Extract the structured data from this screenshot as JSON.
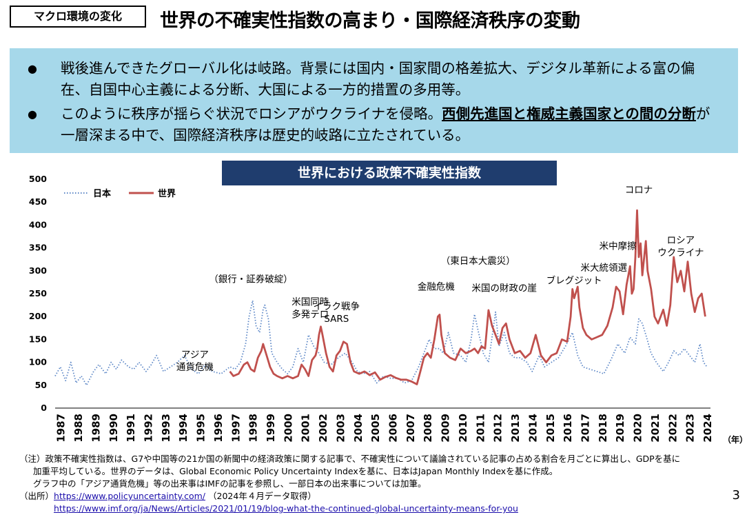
{
  "header": {
    "tag": "マクロ環境の変化",
    "title": "世界の不確実性指数の高まり・国際経済秩序の変動"
  },
  "summary": {
    "bullet_symbol": "●",
    "bullet1": "戦後進んできたグローバル化は岐路。背景には国内・国家間の格差拡大、デジタル革新による富の偏在、自国中心主義による分断、大国による一方的措置の多用等。",
    "bullet2_pre": "このように秩序が揺らぐ状況でロシアがウクライナを侵略。",
    "bullet2_bold": "西側先進国と権威主義国家との間の分断",
    "bullet2_post": "が一層深まる中で、国際経済秩序は歴史的岐路に立たされている。"
  },
  "chart_title": "世界における政策不確実性指数",
  "chart_data": {
    "type": "line",
    "x_unit_label": "（年）",
    "ylim": [
      0,
      500
    ],
    "yticks": [
      0,
      50,
      100,
      150,
      200,
      250,
      300,
      350,
      400,
      450,
      500
    ],
    "years": [
      "1987",
      "1988",
      "1989",
      "1990",
      "1991",
      "1992",
      "1993",
      "1994",
      "1995",
      "1996",
      "1997",
      "1998",
      "1999",
      "2000",
      "2001",
      "2002",
      "2003",
      "2004",
      "2005",
      "2006",
      "2007",
      "2008",
      "2009",
      "2010",
      "2011",
      "2012",
      "2013",
      "2014",
      "2015",
      "2016",
      "2017",
      "2018",
      "2019",
      "2020",
      "2021",
      "2022",
      "2023",
      "2024"
    ],
    "legend_position": "top-left",
    "series": [
      {
        "name": "日本",
        "style": "dotted",
        "color": "#5b86c6",
        "points": [
          [
            1987.0,
            70
          ],
          [
            1987.3,
            90
          ],
          [
            1987.6,
            60
          ],
          [
            1987.9,
            100
          ],
          [
            1988.2,
            55
          ],
          [
            1988.5,
            70
          ],
          [
            1988.8,
            50
          ],
          [
            1989.2,
            80
          ],
          [
            1989.5,
            95
          ],
          [
            1989.9,
            75
          ],
          [
            1990.2,
            100
          ],
          [
            1990.5,
            85
          ],
          [
            1990.8,
            105
          ],
          [
            1991.2,
            90
          ],
          [
            1991.5,
            85
          ],
          [
            1991.8,
            100
          ],
          [
            1992.2,
            80
          ],
          [
            1992.5,
            95
          ],
          [
            1992.8,
            115
          ],
          [
            1993.2,
            80
          ],
          [
            1993.6,
            90
          ],
          [
            1994.0,
            100
          ],
          [
            1994.4,
            115
          ],
          [
            1994.8,
            85
          ],
          [
            1995.2,
            75
          ],
          [
            1995.6,
            95
          ],
          [
            1996.0,
            80
          ],
          [
            1996.5,
            75
          ],
          [
            1997.0,
            90
          ],
          [
            1997.3,
            85
          ],
          [
            1997.6,
            100
          ],
          [
            1997.9,
            140
          ],
          [
            1998.1,
            200
          ],
          [
            1998.3,
            235
          ],
          [
            1998.5,
            180
          ],
          [
            1998.7,
            165
          ],
          [
            1998.9,
            215
          ],
          [
            1999.0,
            225
          ],
          [
            1999.2,
            195
          ],
          [
            1999.4,
            120
          ],
          [
            1999.7,
            100
          ],
          [
            2000.0,
            85
          ],
          [
            2000.3,
            75
          ],
          [
            2000.6,
            90
          ],
          [
            2000.9,
            130
          ],
          [
            2001.2,
            100
          ],
          [
            2001.5,
            160
          ],
          [
            2001.8,
            135
          ],
          [
            2002.1,
            120
          ],
          [
            2002.4,
            100
          ],
          [
            2002.8,
            95
          ],
          [
            2003.2,
            110
          ],
          [
            2003.6,
            120
          ],
          [
            2004.0,
            100
          ],
          [
            2004.3,
            80
          ],
          [
            2004.6,
            75
          ],
          [
            2005.0,
            80
          ],
          [
            2005.4,
            55
          ],
          [
            2005.8,
            70
          ],
          [
            2006.2,
            65
          ],
          [
            2006.6,
            65
          ],
          [
            2007.0,
            55
          ],
          [
            2007.4,
            60
          ],
          [
            2007.8,
            90
          ],
          [
            2008.1,
            120
          ],
          [
            2008.4,
            150
          ],
          [
            2008.7,
            130
          ],
          [
            2009.0,
            130
          ],
          [
            2009.2,
            120
          ],
          [
            2009.5,
            165
          ],
          [
            2009.8,
            120
          ],
          [
            2010.2,
            115
          ],
          [
            2010.5,
            100
          ],
          [
            2010.8,
            150
          ],
          [
            2011.0,
            205
          ],
          [
            2011.2,
            170
          ],
          [
            2011.5,
            120
          ],
          [
            2011.8,
            100
          ],
          [
            2012.0,
            155
          ],
          [
            2012.2,
            210
          ],
          [
            2012.4,
            135
          ],
          [
            2012.7,
            165
          ],
          [
            2013.0,
            120
          ],
          [
            2013.3,
            110
          ],
          [
            2013.6,
            110
          ],
          [
            2014.0,
            100
          ],
          [
            2014.3,
            80
          ],
          [
            2014.7,
            115
          ],
          [
            2015.0,
            90
          ],
          [
            2015.4,
            100
          ],
          [
            2015.8,
            110
          ],
          [
            2016.2,
            135
          ],
          [
            2016.6,
            165
          ],
          [
            2016.9,
            115
          ],
          [
            2017.2,
            90
          ],
          [
            2017.6,
            85
          ],
          [
            2018.0,
            80
          ],
          [
            2018.4,
            75
          ],
          [
            2018.8,
            105
          ],
          [
            2019.2,
            140
          ],
          [
            2019.6,
            120
          ],
          [
            2019.9,
            155
          ],
          [
            2020.2,
            140
          ],
          [
            2020.4,
            195
          ],
          [
            2020.6,
            185
          ],
          [
            2020.8,
            160
          ],
          [
            2021.1,
            120
          ],
          [
            2021.4,
            100
          ],
          [
            2021.8,
            80
          ],
          [
            2022.1,
            100
          ],
          [
            2022.4,
            125
          ],
          [
            2022.7,
            115
          ],
          [
            2023.0,
            130
          ],
          [
            2023.3,
            115
          ],
          [
            2023.6,
            100
          ],
          [
            2023.9,
            140
          ],
          [
            2024.1,
            100
          ],
          [
            2024.3,
            90
          ]
        ]
      },
      {
        "name": "世界",
        "style": "solid",
        "color": "#c0504d",
        "points": [
          [
            1997.0,
            80
          ],
          [
            1997.2,
            70
          ],
          [
            1997.5,
            75
          ],
          [
            1997.8,
            95
          ],
          [
            1998.0,
            100
          ],
          [
            1998.2,
            85
          ],
          [
            1998.4,
            80
          ],
          [
            1998.6,
            110
          ],
          [
            1998.8,
            125
          ],
          [
            1998.9,
            140
          ],
          [
            1999.1,
            115
          ],
          [
            1999.3,
            90
          ],
          [
            1999.5,
            75
          ],
          [
            1999.7,
            70
          ],
          [
            2000.0,
            65
          ],
          [
            2000.3,
            70
          ],
          [
            2000.6,
            65
          ],
          [
            2000.9,
            70
          ],
          [
            2001.1,
            95
          ],
          [
            2001.3,
            85
          ],
          [
            2001.5,
            70
          ],
          [
            2001.7,
            105
          ],
          [
            2001.9,
            115
          ],
          [
            2002.0,
            130
          ],
          [
            2002.1,
            160
          ],
          [
            2002.2,
            178
          ],
          [
            2002.3,
            160
          ],
          [
            2002.5,
            120
          ],
          [
            2002.7,
            90
          ],
          [
            2002.9,
            80
          ],
          [
            2003.1,
            115
          ],
          [
            2003.3,
            125
          ],
          [
            2003.5,
            145
          ],
          [
            2003.7,
            140
          ],
          [
            2003.9,
            100
          ],
          [
            2004.1,
            80
          ],
          [
            2004.4,
            75
          ],
          [
            2004.7,
            80
          ],
          [
            2005.0,
            72
          ],
          [
            2005.3,
            78
          ],
          [
            2005.6,
            62
          ],
          [
            2005.9,
            68
          ],
          [
            2006.2,
            72
          ],
          [
            2006.5,
            66
          ],
          [
            2006.8,
            62
          ],
          [
            2007.1,
            62
          ],
          [
            2007.4,
            58
          ],
          [
            2007.7,
            52
          ],
          [
            2007.9,
            80
          ],
          [
            2008.1,
            110
          ],
          [
            2008.3,
            120
          ],
          [
            2008.5,
            110
          ],
          [
            2008.7,
            150
          ],
          [
            2008.9,
            200
          ],
          [
            2009.0,
            204
          ],
          [
            2009.1,
            160
          ],
          [
            2009.3,
            120
          ],
          [
            2009.6,
            110
          ],
          [
            2009.9,
            105
          ],
          [
            2010.2,
            130
          ],
          [
            2010.5,
            120
          ],
          [
            2010.8,
            125
          ],
          [
            2011.0,
            130
          ],
          [
            2011.2,
            120
          ],
          [
            2011.4,
            135
          ],
          [
            2011.6,
            130
          ],
          [
            2011.8,
            214
          ],
          [
            2012.0,
            180
          ],
          [
            2012.2,
            160
          ],
          [
            2012.4,
            140
          ],
          [
            2012.6,
            175
          ],
          [
            2012.8,
            185
          ],
          [
            2013.0,
            150
          ],
          [
            2013.3,
            120
          ],
          [
            2013.6,
            125
          ],
          [
            2013.9,
            110
          ],
          [
            2014.2,
            120
          ],
          [
            2014.5,
            160
          ],
          [
            2014.8,
            115
          ],
          [
            2015.1,
            100
          ],
          [
            2015.4,
            115
          ],
          [
            2015.7,
            120
          ],
          [
            2016.0,
            150
          ],
          [
            2016.3,
            145
          ],
          [
            2016.5,
            200
          ],
          [
            2016.6,
            260
          ],
          [
            2016.7,
            240
          ],
          [
            2016.9,
            265
          ],
          [
            2017.0,
            220
          ],
          [
            2017.2,
            175
          ],
          [
            2017.4,
            160
          ],
          [
            2017.7,
            150
          ],
          [
            2018.0,
            155
          ],
          [
            2018.3,
            160
          ],
          [
            2018.6,
            180
          ],
          [
            2018.9,
            220
          ],
          [
            2019.1,
            265
          ],
          [
            2019.3,
            255
          ],
          [
            2019.5,
            205
          ],
          [
            2019.7,
            270
          ],
          [
            2019.9,
            310
          ],
          [
            2020.0,
            250
          ],
          [
            2020.1,
            260
          ],
          [
            2020.2,
            330
          ],
          [
            2020.3,
            432
          ],
          [
            2020.4,
            330
          ],
          [
            2020.5,
            360
          ],
          [
            2020.6,
            290
          ],
          [
            2020.8,
            365
          ],
          [
            2020.9,
            300
          ],
          [
            2021.1,
            260
          ],
          [
            2021.3,
            200
          ],
          [
            2021.5,
            185
          ],
          [
            2021.8,
            215
          ],
          [
            2022.0,
            180
          ],
          [
            2022.2,
            225
          ],
          [
            2022.4,
            330
          ],
          [
            2022.6,
            275
          ],
          [
            2022.8,
            300
          ],
          [
            2023.0,
            255
          ],
          [
            2023.2,
            320
          ],
          [
            2023.4,
            250
          ],
          [
            2023.6,
            210
          ],
          [
            2023.8,
            240
          ],
          [
            2024.0,
            250
          ],
          [
            2024.2,
            200
          ]
        ]
      }
    ],
    "annotations": [
      {
        "text": "アジア\n通貨危機",
        "x": 1995.0,
        "y": 110
      },
      {
        "text": "（銀行・証券破綻）",
        "x": 1998.2,
        "y": 275
      },
      {
        "text": "米国同時\n多発テロ",
        "x": 2001.6,
        "y": 225
      },
      {
        "text": "イラク戦争\nSARS",
        "x": 2003.1,
        "y": 215
      },
      {
        "text": "金融危機",
        "x": 2008.8,
        "y": 258
      },
      {
        "text": "（東日本大震災）",
        "x": 2011.2,
        "y": 315
      },
      {
        "text": "米国の財政の崖",
        "x": 2012.7,
        "y": 255
      },
      {
        "text": "ブレグジット",
        "x": 2016.7,
        "y": 272
      },
      {
        "text": "米大統領選",
        "x": 2018.4,
        "y": 300
      },
      {
        "text": "米中摩擦",
        "x": 2019.2,
        "y": 347
      },
      {
        "text": "コロナ",
        "x": 2020.4,
        "y": 470
      },
      {
        "text": "ロシア\nウクライナ",
        "x": 2022.8,
        "y": 360
      }
    ]
  },
  "notes": {
    "note_label": "（注）",
    "note1": "政策不確実性指数は、G7や中国等の21か国の新聞中の経済政策に関する記事で、不確実性について議論されている記事の占める割合を月ごとに算出し、GDPを基に",
    "note2": "加重平均している。世界のデータは、Global Economic Policy Uncertainty Indexを基に、日本はJapan Monthly Indexを基に作成。",
    "note3": "グラフ中の「アジア通貨危機」等の出来事はIMFの記事を参照し、一部日本の出来事については加筆。",
    "source_label": "（出所）",
    "source_url1": "https://www.policyuncertainty.com/",
    "source_date": "（2024年４月データ取得）",
    "source_url2": "https://www.imf.org/ja/News/Articles/2021/01/19/blog-what-the-continued-global-uncertainty-means-for-you"
  },
  "page_number": "3"
}
